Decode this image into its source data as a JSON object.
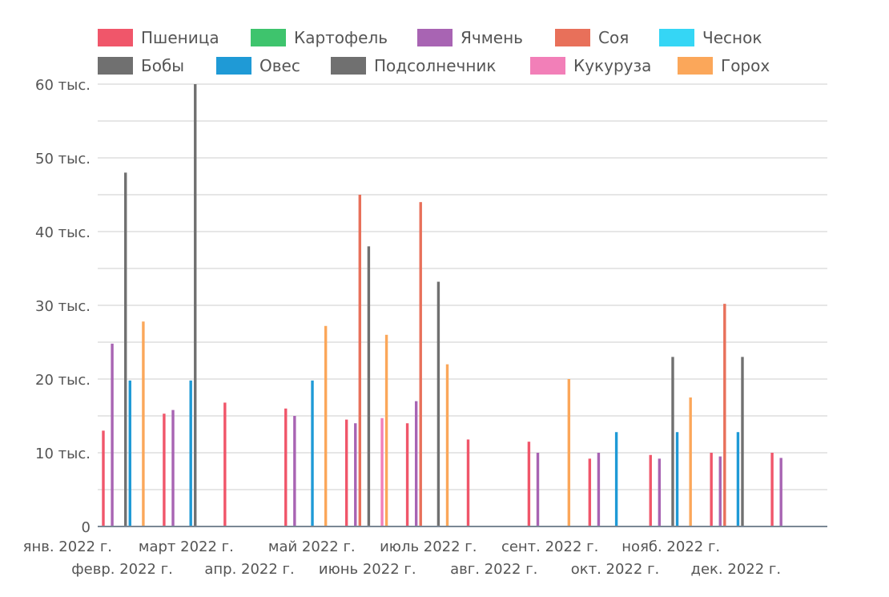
{
  "chart_data": {
    "type": "bar",
    "categories": [
      "янв. 2022 г.",
      "февр. 2022 г.",
      "март 2022 г.",
      "апр. 2022 г.",
      "май 2022 г.",
      "июнь 2022 г.",
      "июль 2022 г.",
      "авг. 2022 г.",
      "сент. 2022 г.",
      "окт. 2022 г.",
      "нояб. 2022 г.",
      "дек. 2022 г."
    ],
    "ylim": [
      0,
      60000
    ],
    "yticks": [
      0,
      10000,
      20000,
      30000,
      40000,
      50000,
      60000
    ],
    "ytick_labels": [
      "0",
      "10 тыс.",
      "20 тыс.",
      "30 тыс.",
      "40 тыс.",
      "50 тыс.",
      "60 тыс."
    ],
    "legend_position": "top",
    "grid": true,
    "series": [
      {
        "name": "Пшеница",
        "color": "#f0566a",
        "values": [
          13000,
          15300,
          16800,
          16000,
          14500,
          14000,
          11800,
          11500,
          9200,
          9700,
          10000,
          10000
        ]
      },
      {
        "name": "Картофель",
        "color": "#3ec46d",
        "values": [
          0,
          0,
          0,
          0,
          0,
          0,
          0,
          0,
          0,
          0,
          0,
          0
        ]
      },
      {
        "name": "Ячмень",
        "color": "#a864b3",
        "values": [
          24800,
          15800,
          0,
          15000,
          14000,
          17000,
          0,
          10000,
          10000,
          9200,
          9500,
          9300
        ]
      },
      {
        "name": "Соя",
        "color": "#e8705a",
        "values": [
          0,
          0,
          0,
          0,
          45000,
          44000,
          0,
          0,
          0,
          0,
          30200,
          0
        ]
      },
      {
        "name": "Чеснок",
        "color": "#35d6f5",
        "values": [
          0,
          0,
          0,
          0,
          0,
          0,
          0,
          0,
          0,
          0,
          0,
          0
        ]
      },
      {
        "name": "Бобы",
        "color": "#707070",
        "values": [
          48000,
          0,
          0,
          0,
          38000,
          0,
          0,
          0,
          0,
          23000,
          0,
          0
        ]
      },
      {
        "name": "Овес",
        "color": "#1f9ad6",
        "values": [
          19800,
          19800,
          0,
          19800,
          0,
          0,
          0,
          0,
          12800,
          12800,
          12800,
          0
        ]
      },
      {
        "name": "Подсолнечник",
        "color": "#707070",
        "values": [
          0,
          60000,
          0,
          0,
          0,
          33200,
          0,
          0,
          0,
          0,
          23000,
          0
        ]
      },
      {
        "name": "Кукуруза",
        "color": "#f27fb8",
        "values": [
          0,
          0,
          0,
          0,
          14700,
          0,
          0,
          0,
          0,
          0,
          0,
          0
        ]
      },
      {
        "name": "Горох",
        "color": "#fba75a",
        "values": [
          27800,
          0,
          0,
          27200,
          26000,
          22000,
          0,
          20000,
          0,
          17500,
          0,
          0
        ]
      }
    ]
  }
}
